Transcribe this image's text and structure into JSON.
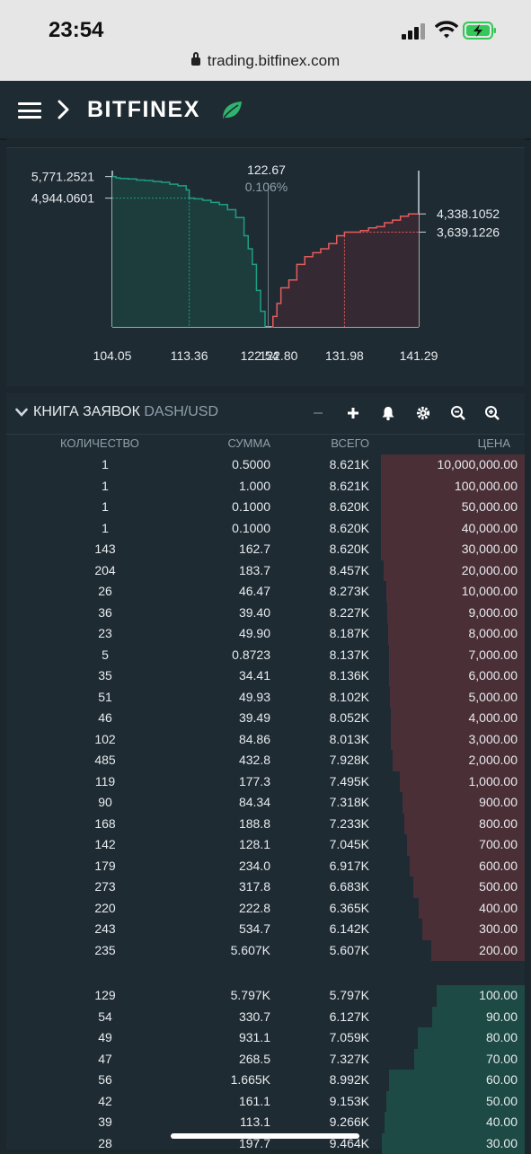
{
  "status": {
    "time": "23:54",
    "url": "trading.bitfinex.com"
  },
  "brand": {
    "name": "BITFINEX",
    "accent": "#27ae60"
  },
  "icons": {
    "menu": "hamburger-icon",
    "expand": "chevron-right-icon",
    "logo": "leaf-icon"
  },
  "depth_chart": {
    "chart_data": {
      "type": "area",
      "x_ticks": [
        "104.05",
        "113.36",
        "122.54",
        "122.80",
        "131.98",
        "141.29"
      ],
      "center_price": "122.67",
      "spread_pct": "0.106%",
      "bid_labels": [
        "5,771.2521",
        "4,944.0601"
      ],
      "ask_labels": [
        "4,338.1052",
        "3,639.1226"
      ],
      "bid_color": "#1e9e84",
      "ask_color": "#e65c5c",
      "bids": [
        [
          104.05,
          5771.25
        ],
        [
          104.5,
          5720
        ],
        [
          105,
          5700
        ],
        [
          106,
          5680
        ],
        [
          107,
          5640
        ],
        [
          108,
          5620
        ],
        [
          109,
          5580
        ],
        [
          110,
          5550
        ],
        [
          111,
          5480
        ],
        [
          112,
          5420
        ],
        [
          113,
          5260
        ],
        [
          113.36,
          4944.06
        ],
        [
          114,
          4920
        ],
        [
          115,
          4860
        ],
        [
          116,
          4780
        ],
        [
          117,
          4700
        ],
        [
          118,
          4500
        ],
        [
          119,
          4200
        ],
        [
          120,
          3500
        ],
        [
          120.5,
          3000
        ],
        [
          121,
          2400
        ],
        [
          121.5,
          1400
        ],
        [
          122,
          600
        ],
        [
          122.54,
          0
        ]
      ],
      "asks": [
        [
          122.8,
          0
        ],
        [
          123,
          400
        ],
        [
          123.5,
          900
        ],
        [
          124,
          1500
        ],
        [
          125,
          1800
        ],
        [
          126,
          2400
        ],
        [
          127,
          2700
        ],
        [
          128,
          2850
        ],
        [
          129,
          3000
        ],
        [
          130,
          3200
        ],
        [
          131,
          3500
        ],
        [
          131.98,
          3639.12
        ],
        [
          133,
          3640
        ],
        [
          134,
          3700
        ],
        [
          135,
          3800
        ],
        [
          136,
          3850
        ],
        [
          137,
          4000
        ],
        [
          138,
          4100
        ],
        [
          139,
          4250
        ],
        [
          140,
          4338.11
        ],
        [
          141.29,
          4338.11
        ]
      ],
      "ylim": [
        0,
        6000
      ],
      "xlim": [
        104.05,
        141.29
      ]
    }
  },
  "orderbook": {
    "title": "КНИГА ЗАЯВОК",
    "pair": "DASH/USD",
    "columns": [
      "КОЛИЧЕСТВО",
      "СУММА",
      "ВСЕГО",
      "ЦЕНА"
    ],
    "toolbar_icons": [
      "minus-icon",
      "plus-icon",
      "bell-icon",
      "gear-icon",
      "zoom-out-icon",
      "zoom-in-icon"
    ],
    "asks": [
      {
        "count": "1",
        "amount": "0.5000",
        "total": "8.621K",
        "price": "10,000,000.00",
        "depth": 1.0
      },
      {
        "count": "1",
        "amount": "1.000",
        "total": "8.621K",
        "price": "100,000.00",
        "depth": 1.0
      },
      {
        "count": "1",
        "amount": "0.1000",
        "total": "8.620K",
        "price": "50,000.00",
        "depth": 1.0
      },
      {
        "count": "1",
        "amount": "0.1000",
        "total": "8.620K",
        "price": "40,000.00",
        "depth": 1.0
      },
      {
        "count": "143",
        "amount": "162.7",
        "total": "8.620K",
        "price": "30,000.00",
        "depth": 1.0
      },
      {
        "count": "204",
        "amount": "183.7",
        "total": "8.457K",
        "price": "20,000.00",
        "depth": 0.981
      },
      {
        "count": "26",
        "amount": "46.47",
        "total": "8.273K",
        "price": "10,000.00",
        "depth": 0.96
      },
      {
        "count": "36",
        "amount": "39.40",
        "total": "8.227K",
        "price": "9,000.00",
        "depth": 0.954
      },
      {
        "count": "23",
        "amount": "49.90",
        "total": "8.187K",
        "price": "8,000.00",
        "depth": 0.95
      },
      {
        "count": "5",
        "amount": "0.8723",
        "total": "8.137K",
        "price": "7,000.00",
        "depth": 0.944
      },
      {
        "count": "35",
        "amount": "34.41",
        "total": "8.136K",
        "price": "6,000.00",
        "depth": 0.944
      },
      {
        "count": "51",
        "amount": "49.93",
        "total": "8.102K",
        "price": "5,000.00",
        "depth": 0.94
      },
      {
        "count": "46",
        "amount": "39.49",
        "total": "8.052K",
        "price": "4,000.00",
        "depth": 0.934
      },
      {
        "count": "102",
        "amount": "84.86",
        "total": "8.013K",
        "price": "3,000.00",
        "depth": 0.93
      },
      {
        "count": "485",
        "amount": "432.8",
        "total": "7.928K",
        "price": "2,000.00",
        "depth": 0.92
      },
      {
        "count": "119",
        "amount": "177.3",
        "total": "7.495K",
        "price": "1,000.00",
        "depth": 0.869
      },
      {
        "count": "90",
        "amount": "84.34",
        "total": "7.318K",
        "price": "900.00",
        "depth": 0.849
      },
      {
        "count": "168",
        "amount": "188.8",
        "total": "7.233K",
        "price": "800.00",
        "depth": 0.839
      },
      {
        "count": "142",
        "amount": "128.1",
        "total": "7.045K",
        "price": "700.00",
        "depth": 0.817
      },
      {
        "count": "179",
        "amount": "234.0",
        "total": "6.917K",
        "price": "600.00",
        "depth": 0.802
      },
      {
        "count": "273",
        "amount": "317.8",
        "total": "6.683K",
        "price": "500.00",
        "depth": 0.775
      },
      {
        "count": "220",
        "amount": "222.8",
        "total": "6.365K",
        "price": "400.00",
        "depth": 0.738
      },
      {
        "count": "243",
        "amount": "534.7",
        "total": "6.142K",
        "price": "300.00",
        "depth": 0.712
      },
      {
        "count": "235",
        "amount": "5.607K",
        "total": "5.607K",
        "price": "200.00",
        "depth": 0.65
      }
    ],
    "bids": [
      {
        "count": "129",
        "amount": "5.797K",
        "total": "5.797K",
        "price": "100.00",
        "depth": 0.61
      },
      {
        "count": "54",
        "amount": "330.7",
        "total": "6.127K",
        "price": "90.00",
        "depth": 0.645
      },
      {
        "count": "49",
        "amount": "931.1",
        "total": "7.059K",
        "price": "80.00",
        "depth": 0.743
      },
      {
        "count": "47",
        "amount": "268.5",
        "total": "7.327K",
        "price": "70.00",
        "depth": 0.771
      },
      {
        "count": "56",
        "amount": "1.665K",
        "total": "8.992K",
        "price": "60.00",
        "depth": 0.946
      },
      {
        "count": "42",
        "amount": "161.1",
        "total": "9.153K",
        "price": "50.00",
        "depth": 0.963
      },
      {
        "count": "39",
        "amount": "113.1",
        "total": "9.266K",
        "price": "40.00",
        "depth": 0.975
      },
      {
        "count": "28",
        "amount": "197.7",
        "total": "9.464K",
        "price": "30.00",
        "depth": 0.996
      }
    ]
  }
}
